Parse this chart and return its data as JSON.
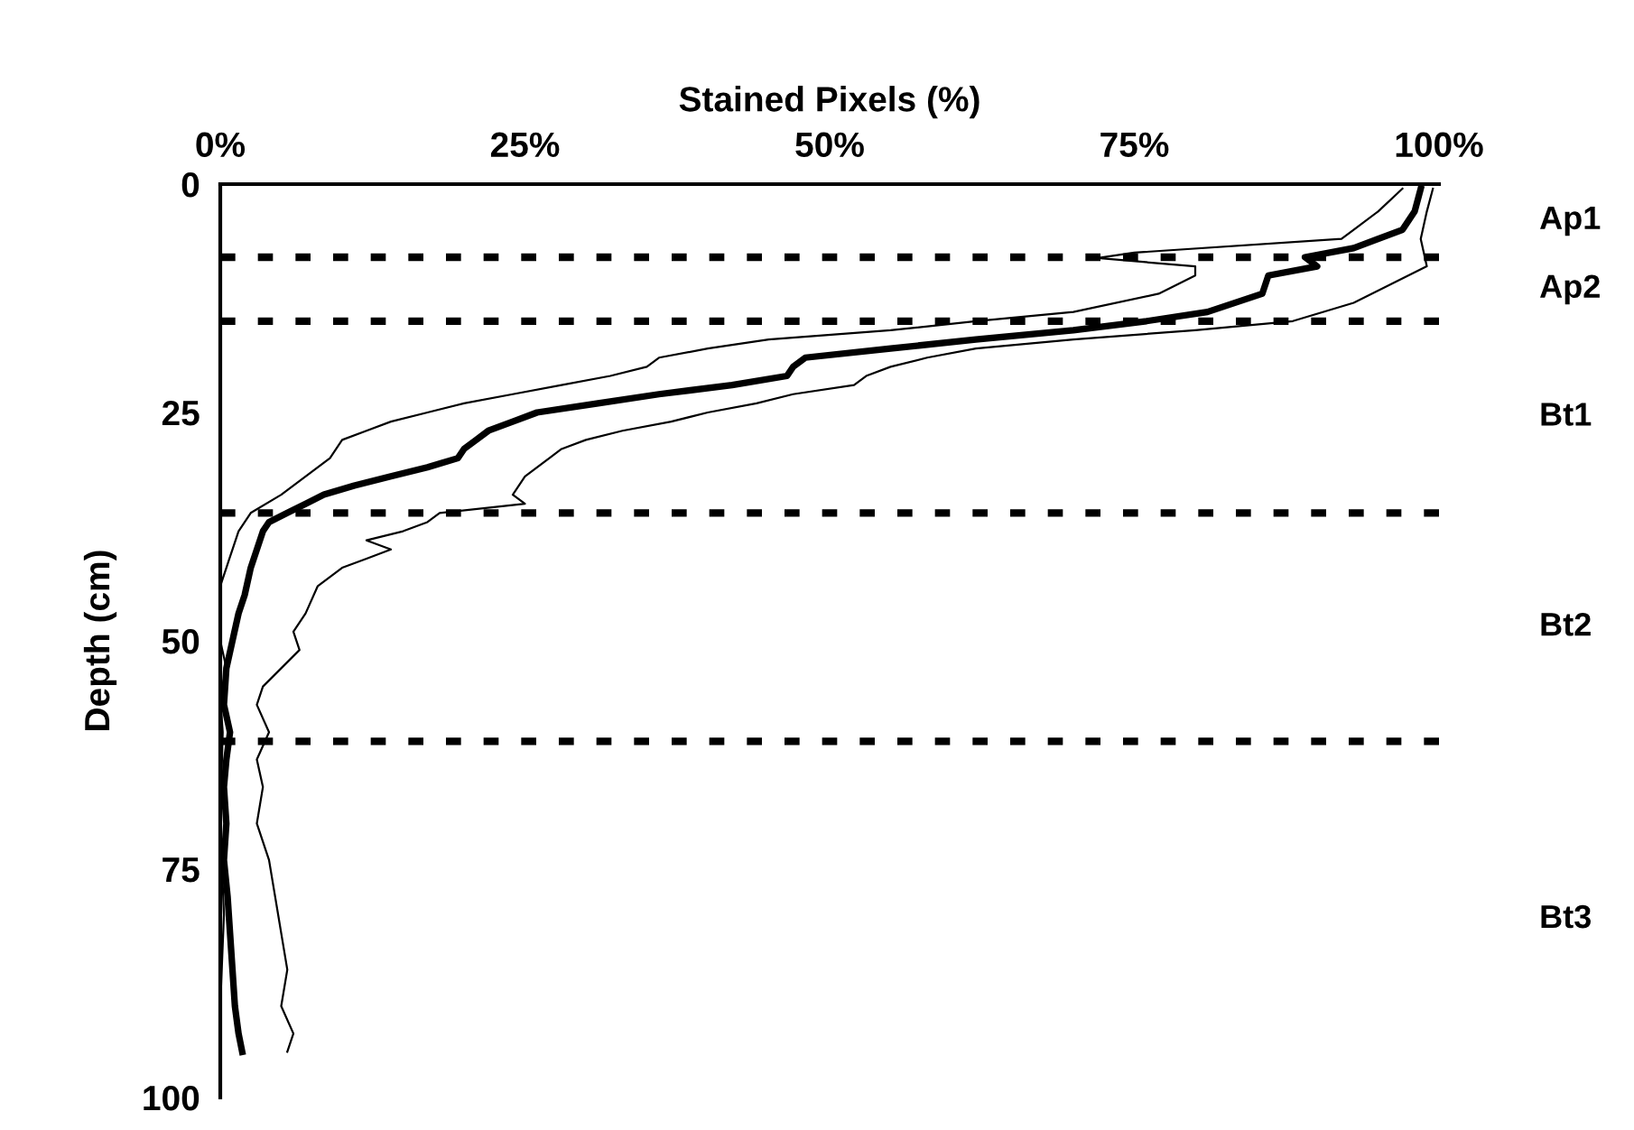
{
  "chart_data": {
    "type": "line",
    "xlabel": "Stained Pixels (%)",
    "ylabel": "Depth (cm)",
    "xlim": [
      0,
      100
    ],
    "xticks": [
      {
        "value": 0,
        "label": "0%"
      },
      {
        "value": 25,
        "label": "25%"
      },
      {
        "value": 50,
        "label": "50%"
      },
      {
        "value": 75,
        "label": "75%"
      },
      {
        "value": 100,
        "label": "100%"
      }
    ],
    "ylim": [
      100,
      0
    ],
    "yticks": [
      0,
      25,
      50,
      75,
      100
    ],
    "grid": false,
    "legend": false,
    "marker": "none",
    "line_style": "solid",
    "series": [
      {
        "color": "#000000",
        "x": [
          98.5,
          98,
          97,
          93,
          89,
          90,
          86,
          85.5,
          81,
          76,
          70,
          62,
          55,
          48,
          47,
          46.5,
          42,
          36,
          31,
          26,
          24,
          22,
          21,
          20,
          19.5,
          17,
          14,
          11,
          8.5,
          7,
          5.5,
          4,
          3.5,
          3,
          2.5,
          2,
          1.5,
          1,
          0.5,
          0.3,
          0.8,
          0.5,
          0.3,
          0.5,
          0.3,
          0.6,
          0.8,
          1,
          1.2,
          1.5,
          1.8
        ],
        "values": [
          0.5,
          3,
          5,
          7,
          8,
          9,
          10,
          12,
          14,
          15,
          16,
          17,
          18,
          19,
          20,
          21,
          22,
          23,
          24,
          25,
          26,
          27,
          28,
          29,
          30,
          31,
          32,
          33,
          34,
          35,
          36,
          37,
          38,
          40,
          42,
          45,
          47,
          50,
          53,
          57,
          60,
          63,
          66,
          70,
          74,
          78,
          82,
          86,
          90,
          93,
          95
        ]
      },
      {
        "color": "#000000",
        "x": [
          99.5,
          99,
          98.5,
          99,
          96,
          93,
          88,
          80,
          70,
          62,
          58,
          55,
          53,
          52,
          47,
          44,
          40,
          37,
          33,
          30,
          28,
          27,
          25,
          24,
          25,
          18,
          17,
          15,
          12,
          14,
          12,
          10,
          8,
          7,
          6,
          6.5,
          5,
          3.5,
          3,
          4,
          3,
          3.5,
          3,
          4,
          4.5,
          5,
          5.5,
          5,
          6,
          5.5
        ],
        "values": [
          0.5,
          3,
          6,
          9,
          11,
          13,
          15,
          16,
          17,
          18,
          19,
          20,
          21,
          22,
          23,
          24,
          25,
          26,
          27,
          28,
          29,
          30,
          32,
          34,
          35,
          36,
          37,
          38,
          39,
          40,
          41,
          42,
          44,
          47,
          49,
          51,
          53,
          55,
          57,
          60,
          63,
          66,
          70,
          74,
          78,
          82,
          86,
          90,
          93,
          95
        ]
      },
      {
        "color": "#000000",
        "x": [
          97,
          95,
          92,
          75,
          72,
          80,
          80,
          77,
          70,
          62,
          55,
          45,
          40,
          36,
          35,
          32,
          28,
          24,
          20,
          17,
          14,
          12,
          10,
          9,
          7,
          5,
          2.5,
          1.5,
          1,
          0.5,
          0,
          0,
          0.5,
          0,
          0.2,
          0,
          0.3,
          0,
          0
        ],
        "values": [
          0.5,
          3,
          6,
          7.5,
          8.1,
          9,
          10,
          12,
          14,
          15,
          16,
          17,
          18,
          19,
          20,
          21,
          22,
          23,
          24,
          25,
          26,
          27,
          28,
          30,
          32,
          34,
          36,
          38,
          40,
          42,
          44,
          50,
          53,
          56,
          60,
          70,
          80,
          90,
          95
        ]
      }
    ],
    "ref_lines": [
      {
        "axis": "y",
        "value": 8,
        "line_style": "dotted",
        "color": "#000000"
      },
      {
        "axis": "y",
        "value": 15,
        "line_style": "dotted",
        "color": "#000000"
      },
      {
        "axis": "y",
        "value": 36,
        "line_style": "dotted",
        "color": "#000000"
      },
      {
        "axis": "y",
        "value": 61,
        "line_style": "dotted",
        "color": "#000000"
      }
    ],
    "annotations": [
      "Ap1",
      "Ap2",
      "Bt1",
      "Bt2",
      "Bt3"
    ]
  }
}
